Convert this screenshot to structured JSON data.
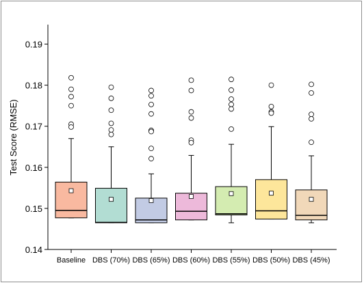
{
  "chart_data": {
    "type": "box",
    "title": "",
    "xlabel": "",
    "ylabel": "Test Score (RMSE)",
    "ylim": [
      0.14,
      0.195
    ],
    "yticks": [
      0.14,
      0.15,
      0.16,
      0.17,
      0.18,
      0.19
    ],
    "ytick_labels": [
      "0.14",
      "0.15",
      "0.16",
      "0.17",
      "0.18",
      "0.19"
    ],
    "grid": false,
    "categories": [
      "Baseline",
      "DBS (70%)",
      "DBS (65%)",
      "DBS (60%)",
      "DBS (55%)",
      "DBS (50%)",
      "DBS (45%)"
    ],
    "boxes": [
      {
        "category": "Baseline",
        "whisker_low": 0.1477,
        "q1": 0.1477,
        "median": 0.1495,
        "q3": 0.1564,
        "whisker_high": 0.167,
        "mean": 0.1543,
        "outliers": [
          0.1818,
          0.179,
          0.1772,
          0.175,
          0.1705,
          0.1698
        ],
        "color": "#f9b9a0"
      },
      {
        "category": "DBS (70%)",
        "whisker_low": 0.1465,
        "q1": 0.1465,
        "median": 0.1466,
        "q3": 0.1549,
        "whisker_high": 0.165,
        "mean": 0.1522,
        "outliers": [
          0.1795,
          0.1768,
          0.1739,
          0.1707,
          0.1691,
          0.168
        ],
        "color": "#b2ddd3"
      },
      {
        "category": "DBS (65%)",
        "whisker_low": 0.1465,
        "q1": 0.1465,
        "median": 0.1472,
        "q3": 0.1525,
        "whisker_high": 0.1584,
        "mean": 0.1519,
        "outliers": [
          0.1787,
          0.1774,
          0.1753,
          0.173,
          0.169,
          0.1687,
          0.1646,
          0.1621
        ],
        "color": "#c2cbe4"
      },
      {
        "category": "DBS (60%)",
        "whisker_low": 0.1472,
        "q1": 0.1472,
        "median": 0.1493,
        "q3": 0.1537,
        "whisker_high": 0.1629,
        "mean": 0.1529,
        "outliers": [
          0.1812,
          0.1787,
          0.1735,
          0.172,
          0.1666,
          0.166
        ],
        "color": "#edb9da"
      },
      {
        "category": "DBS (55%)",
        "whisker_low": 0.1465,
        "q1": 0.1484,
        "median": 0.1487,
        "q3": 0.1553,
        "whisker_high": 0.1656,
        "mean": 0.1536,
        "outliers": [
          0.1814,
          0.1788,
          0.1766,
          0.1753,
          0.1742,
          0.1693
        ],
        "color": "#d4ecb1"
      },
      {
        "category": "DBS (50%)",
        "whisker_low": 0.1474,
        "q1": 0.1474,
        "median": 0.1494,
        "q3": 0.157,
        "whisker_high": 0.1699,
        "mean": 0.1537,
        "outliers": [
          0.18,
          0.1748,
          0.1735,
          0.1732
        ],
        "color": "#fde69b"
      },
      {
        "category": "DBS (45%)",
        "whisker_low": 0.1465,
        "q1": 0.1472,
        "median": 0.1483,
        "q3": 0.1545,
        "whisker_high": 0.1628,
        "mean": 0.1522,
        "outliers": [
          0.1802,
          0.1781,
          0.1729,
          0.1718,
          0.1661
        ],
        "color": "#f1d8b9"
      }
    ]
  }
}
